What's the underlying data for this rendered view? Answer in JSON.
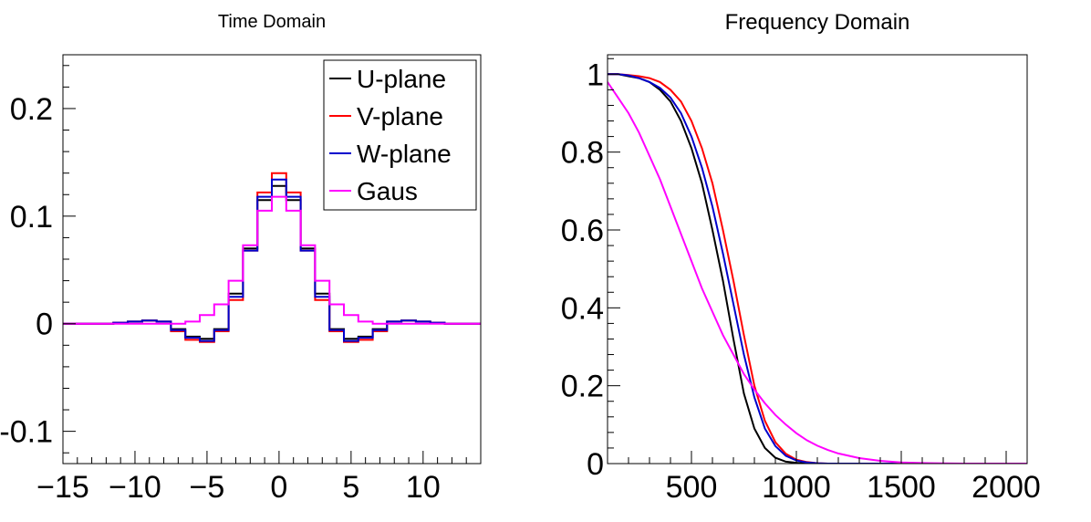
{
  "chart_data": [
    {
      "type": "line",
      "title": "Time Domain",
      "xlabel": "",
      "ylabel": "",
      "xlim": [
        -15,
        14
      ],
      "ylim": [
        -0.13,
        0.25
      ],
      "x_ticks": [
        -15,
        -10,
        -5,
        0,
        5,
        10
      ],
      "x_tick_labels": [
        "−15",
        "−10",
        "−5",
        "0",
        "5",
        "10"
      ],
      "y_ticks": [
        -0.1,
        0,
        0.1,
        0.2
      ],
      "y_tick_labels": [
        "-0.1",
        "0",
        "0.1",
        "0.2"
      ],
      "grid": false,
      "legend_position": "top-right",
      "step": true,
      "x": [
        -15,
        -14,
        -13,
        -12,
        -11,
        -10,
        -9,
        -8,
        -7,
        -6,
        -5,
        -4,
        -3,
        -2,
        -1,
        0,
        1,
        2,
        3,
        4,
        5,
        6,
        7,
        8,
        9,
        10,
        11,
        12,
        13,
        14
      ],
      "series": [
        {
          "name": "U-plane",
          "color": "#000000",
          "values": [
            0,
            0,
            0,
            0,
            0.001,
            0.002,
            0.003,
            0.002,
            -0.005,
            -0.012,
            -0.014,
            -0.005,
            0.028,
            0.07,
            0.115,
            0.128,
            0.115,
            0.07,
            0.028,
            -0.005,
            -0.014,
            -0.012,
            -0.005,
            0.002,
            0.003,
            0.002,
            0.001,
            0,
            0,
            0
          ]
        },
        {
          "name": "V-plane",
          "color": "#ff0000",
          "values": [
            0,
            0,
            0,
            0,
            0.001,
            0.002,
            0.003,
            0.002,
            -0.007,
            -0.015,
            -0.017,
            -0.007,
            0.022,
            0.068,
            0.122,
            0.14,
            0.122,
            0.068,
            0.022,
            -0.007,
            -0.017,
            -0.015,
            -0.007,
            0.002,
            0.003,
            0.002,
            0.001,
            0,
            0,
            0
          ]
        },
        {
          "name": "W-plane",
          "color": "#0000cc",
          "values": [
            0,
            0,
            0,
            0,
            0.001,
            0.002,
            0.003,
            0.002,
            -0.006,
            -0.013,
            -0.016,
            -0.006,
            0.025,
            0.068,
            0.118,
            0.134,
            0.118,
            0.068,
            0.025,
            -0.006,
            -0.016,
            -0.013,
            -0.006,
            0.002,
            0.003,
            0.002,
            0.001,
            0,
            0,
            0
          ]
        },
        {
          "name": "Gaus",
          "color": "#ff00ff",
          "values": [
            0,
            0,
            0,
            0,
            0,
            0,
            0,
            0,
            0,
            0.002,
            0.008,
            0.018,
            0.04,
            0.073,
            0.105,
            0.118,
            0.105,
            0.073,
            0.04,
            0.018,
            0.008,
            0.002,
            0,
            0,
            0,
            0,
            0,
            0,
            0,
            0
          ]
        }
      ]
    },
    {
      "type": "line",
      "title": "Frequency Domain",
      "xlabel": "",
      "ylabel": "",
      "xlim": [
        100,
        2100
      ],
      "ylim": [
        0,
        1.05
      ],
      "x_ticks": [
        500,
        1000,
        1500,
        2000
      ],
      "x_tick_labels": [
        "500",
        "1000",
        "1500",
        "2000"
      ],
      "y_ticks": [
        0,
        0.2,
        0.4,
        0.6,
        0.8,
        1
      ],
      "y_tick_labels": [
        "0",
        "0.2",
        "0.4",
        "0.6",
        "0.8",
        "1"
      ],
      "grid": false,
      "legend": false,
      "x": [
        100,
        150,
        200,
        250,
        300,
        350,
        400,
        450,
        500,
        550,
        600,
        650,
        700,
        750,
        800,
        850,
        900,
        950,
        1000,
        1050,
        1100,
        1150,
        1200,
        1300,
        1400,
        1500,
        1600,
        1700,
        1800,
        1900,
        2000,
        2100
      ],
      "series": [
        {
          "color": "#000000",
          "values": [
            1.0,
            1.0,
            0.995,
            0.99,
            0.98,
            0.96,
            0.93,
            0.88,
            0.81,
            0.72,
            0.6,
            0.47,
            0.32,
            0.18,
            0.09,
            0.04,
            0.015,
            0.005,
            0.002,
            0,
            0,
            0,
            0,
            0,
            0,
            0,
            0,
            0,
            0,
            0,
            0,
            0
          ]
        },
        {
          "color": "#ff0000",
          "values": [
            1.0,
            1.0,
            0.998,
            0.995,
            0.99,
            0.98,
            0.96,
            0.93,
            0.88,
            0.81,
            0.72,
            0.6,
            0.47,
            0.33,
            0.2,
            0.11,
            0.055,
            0.025,
            0.01,
            0.004,
            0.001,
            0,
            0,
            0,
            0,
            0,
            0,
            0,
            0,
            0,
            0,
            0
          ]
        },
        {
          "color": "#0000cc",
          "values": [
            1.0,
            1.0,
            0.997,
            0.99,
            0.98,
            0.965,
            0.94,
            0.9,
            0.84,
            0.76,
            0.66,
            0.54,
            0.41,
            0.28,
            0.17,
            0.09,
            0.045,
            0.02,
            0.008,
            0.003,
            0.001,
            0,
            0,
            0,
            0,
            0,
            0,
            0,
            0,
            0,
            0,
            0
          ]
        },
        {
          "color": "#ff00ff",
          "values": [
            0.98,
            0.94,
            0.9,
            0.85,
            0.79,
            0.73,
            0.66,
            0.59,
            0.52,
            0.45,
            0.39,
            0.33,
            0.28,
            0.23,
            0.19,
            0.155,
            0.125,
            0.1,
            0.078,
            0.06,
            0.046,
            0.035,
            0.026,
            0.014,
            0.007,
            0.003,
            0.0015,
            0.0005,
            0,
            0,
            0,
            0
          ]
        }
      ]
    }
  ]
}
